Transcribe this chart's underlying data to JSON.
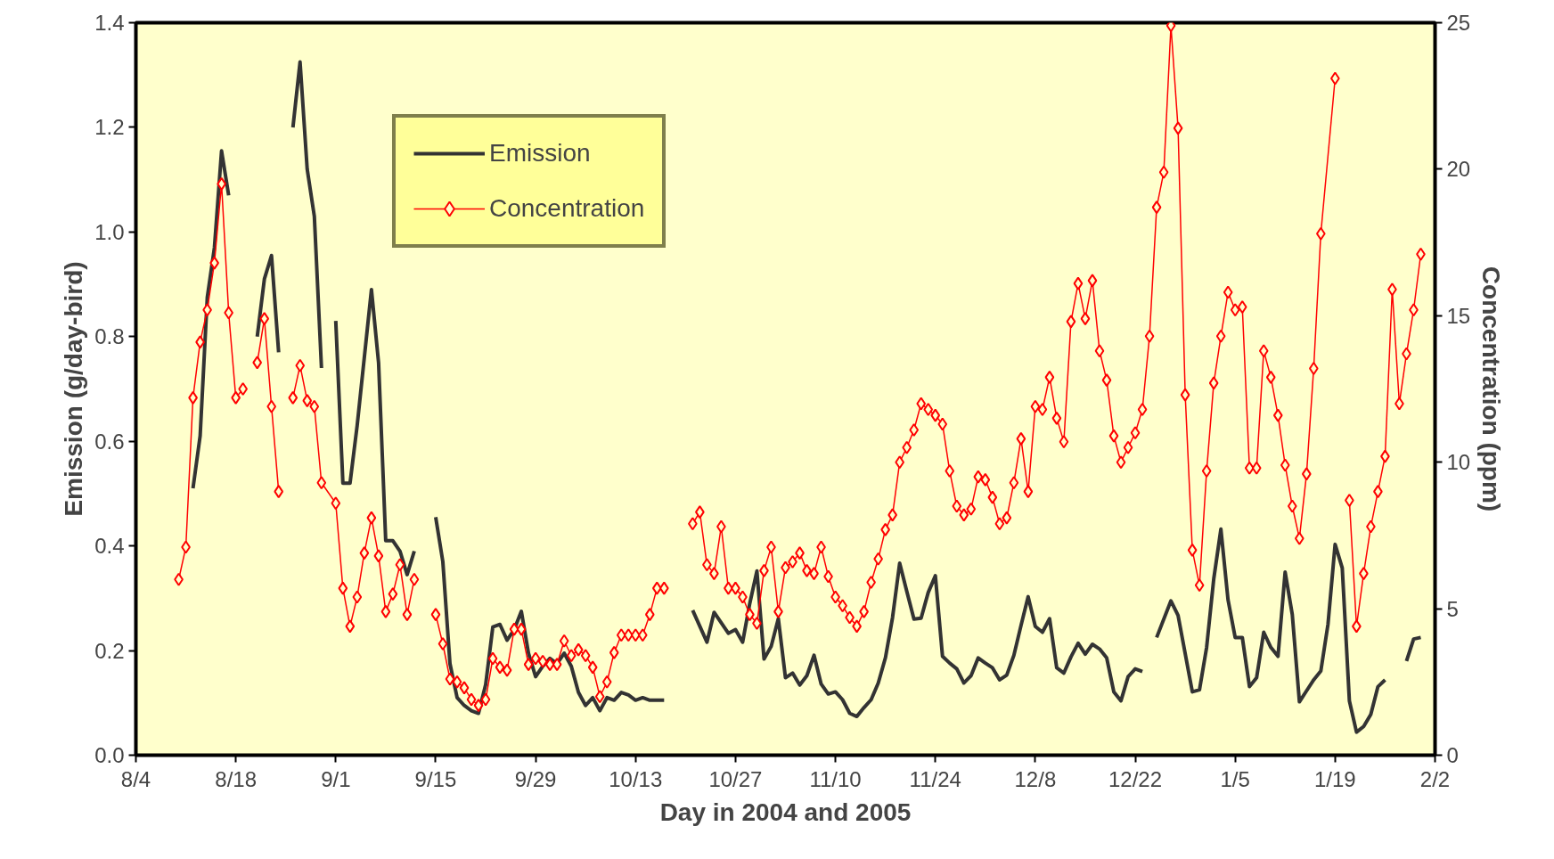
{
  "chart_data": {
    "type": "line",
    "xlabel": "Day in 2004 and 2005",
    "ylabel": "Emission (g/day-bird)",
    "y2label": "Concentration (ppm)",
    "xlim": [
      "2004-08-04",
      "2005-02-02"
    ],
    "xticks": [
      {
        "value": "2004-08-04",
        "label": "8/4"
      },
      {
        "value": "2004-08-18",
        "label": "8/18"
      },
      {
        "value": "2004-09-01",
        "label": "9/1"
      },
      {
        "value": "2004-09-15",
        "label": "9/15"
      },
      {
        "value": "2004-09-29",
        "label": "9/29"
      },
      {
        "value": "2004-10-13",
        "label": "10/13"
      },
      {
        "value": "2004-10-27",
        "label": "10/27"
      },
      {
        "value": "2004-11-10",
        "label": "11/10"
      },
      {
        "value": "2004-11-24",
        "label": "11/24"
      },
      {
        "value": "2004-12-08",
        "label": "12/8"
      },
      {
        "value": "2004-12-22",
        "label": "12/22"
      },
      {
        "value": "2005-01-05",
        "label": "1/5"
      },
      {
        "value": "2005-01-19",
        "label": "1/19"
      },
      {
        "value": "2005-02-02",
        "label": "2/2"
      }
    ],
    "ylim": [
      0,
      1.4
    ],
    "yticks": [
      {
        "value": 0,
        "label": "0.0"
      },
      0.2,
      0.4,
      0.6,
      0.8,
      {
        "value": 1,
        "label": "1.0"
      },
      1.2,
      1.4
    ],
    "y2lim": [
      0,
      25
    ],
    "y2ticks": [
      0,
      5,
      10,
      15,
      20,
      25
    ],
    "grid": false,
    "legend": "top left",
    "series": [
      {
        "name": "Emission",
        "color": "#333333",
        "marker": "none",
        "line_style": "solid",
        "x": [
          "2004-08-12",
          "2004-08-13",
          "2004-08-14",
          "2004-08-15",
          "2004-08-16",
          "2004-08-17",
          "2004-08-18",
          "2004-08-21",
          "2004-08-22",
          "2004-08-23",
          "2004-08-24",
          "2004-08-25",
          "2004-08-26",
          "2004-08-27",
          "2004-08-28",
          "2004-08-29",
          "2004-08-30",
          "2004-08-31",
          "2004-09-01",
          "2004-09-02",
          "2004-09-03",
          "2004-09-04",
          "2004-09-05",
          "2004-09-06",
          "2004-09-07",
          "2004-09-08",
          "2004-09-09",
          "2004-09-10",
          "2004-09-11",
          "2004-09-12",
          "2004-09-13",
          "2004-09-15",
          "2004-09-16",
          "2004-09-17",
          "2004-09-18",
          "2004-09-19",
          "2004-09-20",
          "2004-09-21",
          "2004-09-22",
          "2004-09-23",
          "2004-09-24",
          "2004-09-25",
          "2004-09-26",
          "2004-09-27",
          "2004-09-28",
          "2004-09-29",
          "2004-09-30",
          "2004-10-01",
          "2004-10-02",
          "2004-10-03",
          "2004-10-04",
          "2004-10-05",
          "2004-10-06",
          "2004-10-07",
          "2004-10-08",
          "2004-10-09",
          "2004-10-10",
          "2004-10-11",
          "2004-10-12",
          "2004-10-13",
          "2004-10-14",
          "2004-10-15",
          "2004-10-16",
          "2004-10-17",
          "2004-10-18",
          "2004-10-21",
          "2004-10-23",
          "2004-10-24",
          "2004-10-26",
          "2004-10-27",
          "2004-10-28",
          "2004-10-29",
          "2004-10-30",
          "2004-10-31",
          "2004-11-01",
          "2004-11-02",
          "2004-11-03",
          "2004-11-04",
          "2004-11-05",
          "2004-11-06",
          "2004-11-07",
          "2004-11-08",
          "2004-11-09",
          "2004-11-10",
          "2004-11-11",
          "2004-11-12",
          "2004-11-13",
          "2004-11-14",
          "2004-11-15",
          "2004-11-16",
          "2004-11-17",
          "2004-11-18",
          "2004-11-19",
          "2004-11-20",
          "2004-11-21",
          "2004-11-22",
          "2004-11-23",
          "2004-11-24",
          "2004-11-25",
          "2004-11-26",
          "2004-11-27",
          "2004-11-28",
          "2004-11-29",
          "2004-11-30",
          "2004-12-01",
          "2004-12-02",
          "2004-12-03",
          "2004-12-04",
          "2004-12-05",
          "2004-12-06",
          "2004-12-07",
          "2004-12-08",
          "2004-12-09",
          "2004-12-10",
          "2004-12-11",
          "2004-12-12",
          "2004-12-13",
          "2004-12-14",
          "2004-12-15",
          "2004-12-16",
          "2004-12-17",
          "2004-12-18",
          "2004-12-19",
          "2004-12-20",
          "2004-12-21",
          "2004-12-22",
          "2004-12-23",
          "2004-12-24",
          "2004-12-25",
          "2004-12-27",
          "2004-12-28",
          "2004-12-30",
          "2004-12-31",
          "2005-01-01",
          "2005-01-02",
          "2005-01-03",
          "2005-01-04",
          "2005-01-05",
          "2005-01-06",
          "2005-01-07",
          "2005-01-08",
          "2005-01-09",
          "2005-01-10",
          "2005-01-11",
          "2005-01-12",
          "2005-01-13",
          "2005-01-14",
          "2005-01-15",
          "2005-01-16",
          "2005-01-17",
          "2005-01-18",
          "2005-01-19",
          "2005-01-20",
          "2005-01-21",
          "2005-01-22",
          "2005-01-23",
          "2005-01-24",
          "2005-01-25",
          "2005-01-26",
          "2005-01-27",
          "2005-01-29",
          "2005-01-30",
          "2005-01-31"
        ],
        "values": [
          0.51,
          0.61,
          0.875,
          0.97,
          1.155,
          1.07,
          null,
          0.8,
          0.91,
          0.955,
          0.77,
          null,
          1.2,
          1.325,
          1.12,
          1.03,
          0.74,
          null,
          0.83,
          0.52,
          0.52,
          0.63,
          0.76,
          0.89,
          0.75,
          0.41,
          0.41,
          0.39,
          0.345,
          0.39,
          null,
          0.455,
          0.37,
          0.175,
          0.11,
          0.095,
          0.085,
          0.08,
          0.135,
          0.245,
          0.25,
          0.22,
          0.24,
          0.275,
          0.195,
          0.15,
          0.17,
          0.185,
          0.175,
          0.195,
          0.17,
          0.12,
          0.095,
          0.11,
          0.085,
          0.11,
          0.105,
          0.12,
          0.115,
          0.105,
          0.11,
          0.105,
          0.105,
          0.105,
          null,
          0.277,
          0.216,
          0.273,
          0.233,
          0.24,
          0.216,
          0.29,
          0.352,
          0.184,
          0.208,
          0.261,
          0.148,
          0.157,
          0.134,
          0.152,
          0.191,
          0.136,
          0.117,
          0.121,
          0.106,
          0.08,
          0.074,
          0.091,
          0.106,
          0.138,
          0.186,
          0.263,
          0.367,
          0.313,
          0.26,
          0.262,
          0.311,
          0.343,
          0.189,
          0.176,
          0.165,
          0.138,
          0.152,
          0.186,
          0.176,
          0.167,
          0.144,
          0.153,
          0.191,
          0.248,
          0.303,
          0.246,
          0.235,
          0.261,
          0.167,
          0.157,
          0.188,
          0.214,
          0.193,
          0.212,
          0.203,
          0.186,
          0.121,
          0.104,
          0.15,
          0.165,
          0.16,
          null,
          0.225,
          0.295,
          0.267,
          0.121,
          0.125,
          0.206,
          0.337,
          0.432,
          0.297,
          0.225,
          0.225,
          0.131,
          0.148,
          0.235,
          0.206,
          0.189,
          0.35,
          0.269,
          0.102,
          0.123,
          0.144,
          0.161,
          0.25,
          0.403,
          0.358,
          0.104,
          0.044,
          0.055,
          0.078,
          0.131,
          0.144,
          null,
          0.18,
          0.222,
          0.225
        ]
      },
      {
        "name": "Concentration",
        "color": "#ff0000",
        "marker": "diamond",
        "line_style": "solid",
        "axis": "y2",
        "x": [
          "2004-08-10",
          "2004-08-11",
          "2004-08-12",
          "2004-08-13",
          "2004-08-14",
          "2004-08-15",
          "2004-08-16",
          "2004-08-17",
          "2004-08-18",
          "2004-08-19",
          "2004-08-20",
          "2004-08-21",
          "2004-08-22",
          "2004-08-23",
          "2004-08-24",
          "2004-08-25",
          "2004-08-26",
          "2004-08-27",
          "2004-08-28",
          "2004-08-29",
          "2004-08-30",
          "2004-09-01",
          "2004-09-02",
          "2004-09-03",
          "2004-09-04",
          "2004-09-05",
          "2004-09-06",
          "2004-09-07",
          "2004-09-08",
          "2004-09-09",
          "2004-09-10",
          "2004-09-11",
          "2004-09-12",
          "2004-09-13",
          "2004-09-15",
          "2004-09-16",
          "2004-09-17",
          "2004-09-18",
          "2004-09-19",
          "2004-09-20",
          "2004-09-21",
          "2004-09-22",
          "2004-09-23",
          "2004-09-24",
          "2004-09-25",
          "2004-09-26",
          "2004-09-27",
          "2004-09-28",
          "2004-09-29",
          "2004-09-30",
          "2004-10-01",
          "2004-10-02",
          "2004-10-03",
          "2004-10-04",
          "2004-10-05",
          "2004-10-06",
          "2004-10-07",
          "2004-10-08",
          "2004-10-09",
          "2004-10-10",
          "2004-10-11",
          "2004-10-12",
          "2004-10-13",
          "2004-10-14",
          "2004-10-15",
          "2004-10-16",
          "2004-10-17",
          "2004-10-18",
          "2004-10-21",
          "2004-10-22",
          "2004-10-23",
          "2004-10-24",
          "2004-10-25",
          "2004-10-26",
          "2004-10-27",
          "2004-10-28",
          "2004-10-29",
          "2004-10-30",
          "2004-10-31",
          "2004-11-01",
          "2004-11-02",
          "2004-11-03",
          "2004-11-04",
          "2004-11-05",
          "2004-11-06",
          "2004-11-07",
          "2004-11-08",
          "2004-11-09",
          "2004-11-10",
          "2004-11-11",
          "2004-11-12",
          "2004-11-13",
          "2004-11-14",
          "2004-11-15",
          "2004-11-16",
          "2004-11-17",
          "2004-11-18",
          "2004-11-19",
          "2004-11-20",
          "2004-11-21",
          "2004-11-22",
          "2004-11-23",
          "2004-11-24",
          "2004-11-25",
          "2004-11-26",
          "2004-11-27",
          "2004-11-28",
          "2004-11-29",
          "2004-11-30",
          "2004-12-01",
          "2004-12-02",
          "2004-12-03",
          "2004-12-04",
          "2004-12-05",
          "2004-12-06",
          "2004-12-07",
          "2004-12-08",
          "2004-12-09",
          "2004-12-10",
          "2004-12-11",
          "2004-12-12",
          "2004-12-13",
          "2004-12-14",
          "2004-12-15",
          "2004-12-16",
          "2004-12-17",
          "2004-12-18",
          "2004-12-19",
          "2004-12-20",
          "2004-12-21",
          "2004-12-22",
          "2004-12-23",
          "2004-12-24",
          "2004-12-25",
          "2004-12-26",
          "2004-12-27",
          "2004-12-28",
          "2004-12-29",
          "2004-12-30",
          "2004-12-31",
          "2005-01-01",
          "2005-01-02",
          "2005-01-03",
          "2005-01-04",
          "2005-01-05",
          "2005-01-06",
          "2005-01-07",
          "2005-01-08",
          "2005-01-09",
          "2005-01-10",
          "2005-01-11",
          "2005-01-12",
          "2005-01-13",
          "2005-01-14",
          "2005-01-15",
          "2005-01-16",
          "2005-01-17",
          "2005-01-19",
          "2005-01-20",
          "2005-01-21",
          "2005-01-22",
          "2005-01-23",
          "2005-01-24",
          "2005-01-25",
          "2005-01-26",
          "2005-01-27",
          "2005-01-28",
          "2005-01-29",
          "2005-01-30",
          "2005-01-31"
        ],
        "values": [
          6.0,
          7.1,
          12.2,
          14.1,
          15.2,
          16.8,
          19.5,
          15.1,
          12.2,
          12.5,
          null,
          13.4,
          14.9,
          11.9,
          9.0,
          null,
          12.2,
          13.3,
          12.1,
          11.9,
          9.3,
          8.6,
          5.7,
          4.4,
          5.4,
          6.9,
          8.1,
          6.8,
          4.9,
          5.5,
          6.5,
          4.8,
          6.0,
          null,
          4.8,
          3.8,
          2.6,
          2.5,
          2.3,
          1.9,
          1.7,
          1.9,
          3.3,
          3.0,
          2.9,
          4.3,
          4.3,
          3.1,
          3.3,
          3.2,
          3.1,
          3.1,
          3.9,
          3.4,
          3.6,
          3.4,
          3.0,
          2.0,
          2.5,
          3.5,
          4.1,
          4.1,
          4.1,
          4.1,
          4.8,
          5.7,
          5.7,
          null,
          7.9,
          8.3,
          6.5,
          6.2,
          7.8,
          5.7,
          5.7,
          5.4,
          4.8,
          4.5,
          6.3,
          7.1,
          4.9,
          6.4,
          6.6,
          6.9,
          6.3,
          6.2,
          7.1,
          6.1,
          5.4,
          5.1,
          4.7,
          4.4,
          4.9,
          5.9,
          6.7,
          7.7,
          8.2,
          10.0,
          10.5,
          11.1,
          12.0,
          11.8,
          11.6,
          11.3,
          9.7,
          8.5,
          8.2,
          8.4,
          9.5,
          9.4,
          8.8,
          7.9,
          8.1,
          9.3,
          10.8,
          9.0,
          11.9,
          11.8,
          12.9,
          11.5,
          10.7,
          14.8,
          16.1,
          14.9,
          16.2,
          13.8,
          12.8,
          10.9,
          10.0,
          10.5,
          11.0,
          11.8,
          14.3,
          18.7,
          19.9,
          24.9,
          21.4,
          12.3,
          7.0,
          5.8,
          9.7,
          12.7,
          14.3,
          15.8,
          15.2,
          15.3,
          9.8,
          9.8,
          13.8,
          12.9,
          11.6,
          9.9,
          8.5,
          7.4,
          9.6,
          13.2,
          17.8,
          23.1,
          null,
          8.7,
          4.4,
          6.2,
          7.8,
          9.0,
          10.2,
          15.9,
          12.0,
          13.7,
          15.2,
          17.1
        ]
      }
    ]
  }
}
